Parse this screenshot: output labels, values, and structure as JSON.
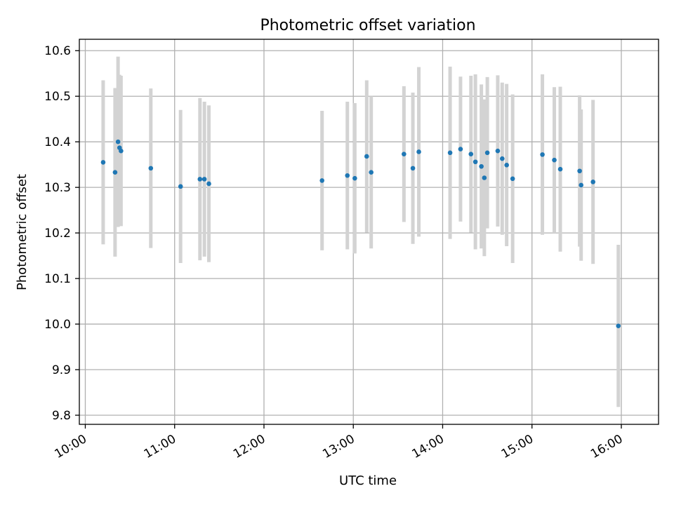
{
  "chart_data": {
    "type": "scatter",
    "title": "Photometric offset variation",
    "xlabel": "UTC time",
    "ylabel": "Photometric offset",
    "x_ticks": [
      "10:00",
      "11:00",
      "12:00",
      "13:00",
      "14:00",
      "15:00",
      "16:00"
    ],
    "y_ticks": [
      "9.8",
      "9.9",
      "10.0",
      "10.1",
      "10.2",
      "10.3",
      "10.4",
      "10.5",
      "10.6"
    ],
    "xlim": [
      "09:56",
      "16:25"
    ],
    "ylim": [
      9.78,
      10.625
    ],
    "grid": true,
    "colors": {
      "point": "#1f77b4",
      "errorbar": "#d3d3d3",
      "grid": "#b0b0b0",
      "axes": "#000000"
    },
    "points": [
      {
        "x": "10:12",
        "y": 10.355,
        "err": 0.18
      },
      {
        "x": "10:20",
        "y": 10.333,
        "err": 0.185
      },
      {
        "x": "10:22",
        "y": 10.4,
        "err": 0.187
      },
      {
        "x": "10:23",
        "y": 10.387,
        "err": 0.16
      },
      {
        "x": "10:24",
        "y": 10.38,
        "err": 0.165
      },
      {
        "x": "10:44",
        "y": 10.342,
        "err": 0.175
      },
      {
        "x": "11:04",
        "y": 10.302,
        "err": 0.168
      },
      {
        "x": "11:17",
        "y": 10.318,
        "err": 0.178
      },
      {
        "x": "11:20",
        "y": 10.318,
        "err": 0.17
      },
      {
        "x": "11:23",
        "y": 10.308,
        "err": 0.172
      },
      {
        "x": "12:39",
        "y": 10.315,
        "err": 0.153
      },
      {
        "x": "12:56",
        "y": 10.326,
        "err": 0.162
      },
      {
        "x": "13:01",
        "y": 10.32,
        "err": 0.165
      },
      {
        "x": "13:09",
        "y": 10.368,
        "err": 0.167
      },
      {
        "x": "13:12",
        "y": 10.333,
        "err": 0.167
      },
      {
        "x": "13:34",
        "y": 10.373,
        "err": 0.149
      },
      {
        "x": "13:40",
        "y": 10.342,
        "err": 0.166
      },
      {
        "x": "13:44",
        "y": 10.378,
        "err": 0.186
      },
      {
        "x": "14:05",
        "y": 10.376,
        "err": 0.189
      },
      {
        "x": "14:12",
        "y": 10.384,
        "err": 0.159
      },
      {
        "x": "14:19",
        "y": 10.373,
        "err": 0.172
      },
      {
        "x": "14:22",
        "y": 10.356,
        "err": 0.192
      },
      {
        "x": "14:26",
        "y": 10.346,
        "err": 0.18
      },
      {
        "x": "14:28",
        "y": 10.321,
        "err": 0.172
      },
      {
        "x": "14:30",
        "y": 10.376,
        "err": 0.166
      },
      {
        "x": "14:37",
        "y": 10.38,
        "err": 0.166
      },
      {
        "x": "14:40",
        "y": 10.363,
        "err": 0.167
      },
      {
        "x": "14:43",
        "y": 10.349,
        "err": 0.178
      },
      {
        "x": "14:47",
        "y": 10.319,
        "err": 0.185
      },
      {
        "x": "15:07",
        "y": 10.372,
        "err": 0.176
      },
      {
        "x": "15:15",
        "y": 10.36,
        "err": 0.16
      },
      {
        "x": "15:19",
        "y": 10.34,
        "err": 0.181
      },
      {
        "x": "15:32",
        "y": 10.336,
        "err": 0.166
      },
      {
        "x": "15:33",
        "y": 10.305,
        "err": 0.166
      },
      {
        "x": "15:41",
        "y": 10.312,
        "err": 0.18
      },
      {
        "x": "15:58",
        "y": 9.996,
        "err": 0.178
      }
    ]
  }
}
